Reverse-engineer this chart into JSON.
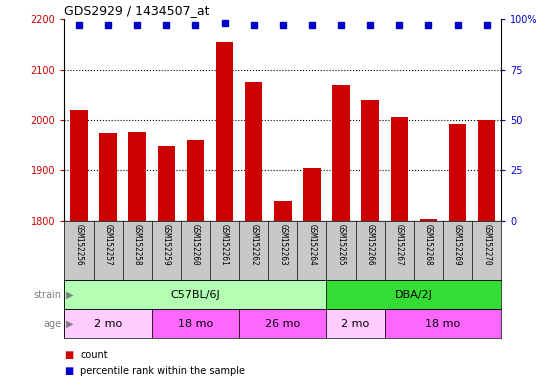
{
  "title": "GDS2929 / 1434507_at",
  "samples": [
    "GSM152256",
    "GSM152257",
    "GSM152258",
    "GSM152259",
    "GSM152260",
    "GSM152261",
    "GSM152262",
    "GSM152263",
    "GSM152264",
    "GSM152265",
    "GSM152266",
    "GSM152267",
    "GSM152268",
    "GSM152269",
    "GSM152270"
  ],
  "counts": [
    2020,
    1975,
    1977,
    1948,
    1960,
    2155,
    2075,
    1840,
    1905,
    2070,
    2040,
    2005,
    1803,
    1992,
    2000
  ],
  "percentile_ranks": [
    97,
    97,
    97,
    97,
    97,
    98,
    97,
    97,
    97,
    97,
    97,
    97,
    97,
    97,
    97
  ],
  "ylim_left": [
    1800,
    2200
  ],
  "ylim_right": [
    0,
    100
  ],
  "yticks_left": [
    1800,
    1900,
    2000,
    2100,
    2200
  ],
  "yticks_right": [
    0,
    25,
    50,
    75,
    100
  ],
  "bar_color": "#cc0000",
  "dot_color": "#0000cc",
  "grid_color": "#000000",
  "bg_color": "#ffffff",
  "tick_area_color": "#c8c8c8",
  "strain_c57_color": "#b3ffb3",
  "strain_dba_color": "#33dd33",
  "age_light_color": "#ffb3ff",
  "age_dark_color": "#ff66ff",
  "strain_labels": [
    {
      "label": "C57BL/6J",
      "start": 0,
      "end": 9,
      "color": "#b3ffb3"
    },
    {
      "label": "DBA/2J",
      "start": 9,
      "end": 15,
      "color": "#33dd33"
    }
  ],
  "age_labels": [
    {
      "label": "2 mo",
      "start": 0,
      "end": 3,
      "color": "#ffccff"
    },
    {
      "label": "18 mo",
      "start": 3,
      "end": 6,
      "color": "#ff66ff"
    },
    {
      "label": "26 mo",
      "start": 6,
      "end": 9,
      "color": "#ff66ff"
    },
    {
      "label": "2 mo",
      "start": 9,
      "end": 11,
      "color": "#ffccff"
    },
    {
      "label": "18 mo",
      "start": 11,
      "end": 15,
      "color": "#ff66ff"
    }
  ]
}
